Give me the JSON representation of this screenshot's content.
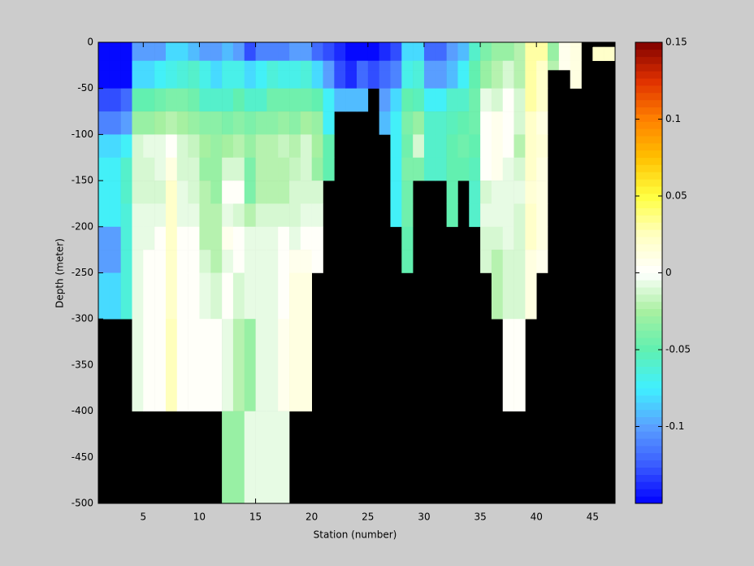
{
  "chart_data": {
    "type": "heatmap",
    "xlabel": "Station (number)",
    "ylabel": "Depth (meter)",
    "xlim": [
      1,
      47
    ],
    "ylim": [
      -500,
      0
    ],
    "xticks": [
      5,
      10,
      15,
      20,
      25,
      30,
      35,
      40,
      45
    ],
    "yticks": [
      0,
      -50,
      -100,
      -150,
      -200,
      -250,
      -300,
      -350,
      -400,
      -450,
      -500
    ],
    "x_edges": [
      1,
      2,
      3,
      4,
      5,
      6,
      7,
      8,
      9,
      10,
      11,
      12,
      13,
      14,
      15,
      16,
      17,
      18,
      19,
      20,
      21,
      22,
      23,
      24,
      25,
      26,
      27,
      28,
      29,
      30,
      31,
      32,
      33,
      34,
      35,
      36,
      37,
      38,
      39,
      40,
      41,
      42,
      43,
      44,
      45,
      46,
      47
    ],
    "y_edges": [
      0,
      -5,
      -20,
      -30,
      -50,
      -75,
      -100,
      -125,
      -150,
      -175,
      -200,
      -225,
      -250,
      -300,
      -400,
      -500
    ],
    "values": [
      [
        -0.15,
        -0.15,
        -0.15,
        -0.15,
        -0.13,
        -0.11,
        -0.08,
        -0.075,
        -0.075,
        -0.075,
        -0.1,
        -0.1,
        -0.08,
        null,
        null
      ],
      [
        -0.15,
        -0.15,
        -0.15,
        -0.15,
        -0.13,
        -0.11,
        -0.08,
        -0.075,
        -0.075,
        -0.075,
        -0.1,
        -0.1,
        -0.08,
        null,
        null
      ],
      [
        -0.15,
        -0.15,
        -0.15,
        -0.15,
        -0.12,
        -0.1,
        -0.075,
        -0.06,
        -0.06,
        -0.065,
        -0.065,
        -0.065,
        -0.065,
        null,
        null
      ],
      [
        -0.1,
        -0.1,
        -0.08,
        -0.08,
        -0.05,
        -0.03,
        -0.01,
        -0.01,
        -0.01,
        -0.005,
        -0.005,
        -0.005,
        -0.005,
        -0.005,
        null
      ],
      [
        -0.1,
        -0.1,
        -0.08,
        -0.08,
        -0.05,
        -0.03,
        -0.005,
        -0.01,
        -0.01,
        -0.005,
        -0.005,
        0,
        0,
        0,
        null
      ],
      [
        -0.1,
        -0.1,
        -0.075,
        -0.075,
        -0.045,
        -0.025,
        -0.005,
        -0.005,
        -0.01,
        -0.005,
        0,
        0,
        0,
        0,
        null
      ],
      [
        -0.08,
        -0.08,
        -0.07,
        -0.07,
        -0.04,
        -0.02,
        0,
        0.01,
        0.02,
        0.02,
        0.02,
        0.02,
        0.02,
        0.025,
        null
      ],
      [
        -0.08,
        -0.08,
        -0.065,
        -0.065,
        -0.04,
        -0.025,
        -0.01,
        -0.01,
        -0.005,
        -0.005,
        0,
        0,
        0,
        0,
        null
      ],
      [
        -0.09,
        -0.09,
        -0.06,
        -0.06,
        -0.045,
        -0.03,
        -0.015,
        -0.01,
        -0.01,
        -0.005,
        0,
        0,
        0,
        0,
        null
      ],
      [
        -0.1,
        -0.1,
        -0.07,
        -0.07,
        -0.06,
        -0.035,
        -0.025,
        -0.03,
        -0.02,
        -0.02,
        -0.02,
        -0.01,
        -0.005,
        0,
        null
      ],
      [
        -0.1,
        -0.1,
        -0.08,
        -0.08,
        -0.06,
        -0.035,
        -0.03,
        -0.03,
        -0.03,
        -0.02,
        -0.02,
        -0.02,
        -0.01,
        0,
        null
      ],
      [
        -0.09,
        -0.09,
        -0.07,
        -0.07,
        -0.06,
        -0.04,
        -0.025,
        -0.01,
        0,
        -0.005,
        0.005,
        -0.005,
        0,
        -0.005,
        -0.03
      ],
      [
        -0.1,
        -0.1,
        -0.07,
        -0.07,
        -0.05,
        -0.035,
        -0.02,
        -0.01,
        0,
        -0.01,
        0,
        0,
        -0.01,
        -0.02,
        -0.03
      ],
      [
        -0.13,
        -0.13,
        -0.08,
        -0.08,
        -0.06,
        -0.04,
        -0.03,
        -0.04,
        -0.04,
        -0.02,
        -0.005,
        -0.005,
        -0.005,
        -0.03,
        -0.005
      ],
      [
        -0.11,
        -0.11,
        -0.075,
        -0.075,
        -0.06,
        -0.035,
        -0.02,
        -0.02,
        -0.02,
        -0.01,
        -0.005,
        -0.005,
        -0.005,
        -0.005,
        -0.005
      ],
      [
        -0.11,
        -0.11,
        -0.065,
        -0.065,
        -0.045,
        -0.035,
        -0.02,
        -0.02,
        -0.02,
        -0.01,
        -0.005,
        -0.005,
        -0.005,
        -0.005,
        -0.005
      ],
      [
        -0.11,
        -0.11,
        -0.07,
        -0.07,
        -0.045,
        -0.03,
        -0.015,
        -0.02,
        -0.02,
        -0.01,
        0,
        0,
        0,
        0.005,
        -0.005
      ],
      [
        -0.1,
        -0.1,
        -0.07,
        -0.07,
        -0.045,
        -0.035,
        -0.02,
        -0.015,
        -0.01,
        -0.01,
        -0.005,
        0.005,
        0.01,
        0.01,
        null
      ],
      [
        -0.1,
        -0.1,
        -0.065,
        -0.065,
        -0.045,
        -0.025,
        -0.01,
        -0.01,
        -0.01,
        -0.005,
        0,
        0.005,
        0.01,
        0.01,
        null
      ],
      [
        -0.12,
        -0.12,
        -0.08,
        -0.08,
        -0.05,
        -0.03,
        -0.025,
        -0.03,
        -0.01,
        -0.005,
        0,
        0,
        null,
        null,
        null
      ],
      [
        -0.13,
        -0.13,
        -0.1,
        -0.1,
        -0.075,
        -0.075,
        -0.05,
        -0.05,
        null,
        null,
        null,
        null,
        null,
        null,
        null
      ],
      [
        -0.14,
        -0.14,
        -0.13,
        -0.13,
        -0.09,
        null,
        null,
        null,
        null,
        null,
        null,
        null,
        null,
        null,
        null
      ],
      [
        -0.15,
        -0.15,
        -0.14,
        -0.14,
        -0.09,
        null,
        null,
        null,
        null,
        null,
        null,
        null,
        null,
        null,
        null
      ],
      [
        -0.15,
        -0.15,
        -0.12,
        -0.12,
        -0.09,
        null,
        null,
        null,
        null,
        null,
        null,
        null,
        null,
        null,
        null
      ],
      [
        -0.15,
        -0.15,
        -0.13,
        -0.13,
        null,
        null,
        null,
        null,
        null,
        null,
        null,
        null,
        null,
        null,
        null
      ],
      [
        -0.14,
        -0.14,
        -0.12,
        -0.12,
        -0.1,
        -0.09,
        null,
        null,
        null,
        null,
        null,
        null,
        null,
        null,
        null
      ],
      [
        -0.13,
        -0.13,
        -0.11,
        -0.11,
        -0.08,
        -0.075,
        -0.075,
        -0.075,
        -0.075,
        -0.075,
        null,
        null,
        null,
        null,
        null
      ],
      [
        -0.08,
        -0.08,
        -0.07,
        -0.07,
        -0.05,
        -0.04,
        -0.045,
        -0.04,
        -0.045,
        -0.045,
        -0.05,
        -0.05,
        null,
        null,
        null
      ],
      [
        -0.08,
        -0.08,
        -0.065,
        -0.065,
        -0.055,
        -0.03,
        -0.01,
        -0.04,
        null,
        null,
        null,
        null,
        null,
        null,
        null
      ],
      [
        -0.12,
        -0.12,
        -0.1,
        -0.1,
        -0.075,
        -0.06,
        -0.06,
        -0.06,
        null,
        null,
        null,
        null,
        null,
        null,
        null
      ],
      [
        -0.12,
        -0.12,
        -0.1,
        -0.1,
        -0.075,
        -0.06,
        -0.06,
        -0.06,
        null,
        null,
        null,
        null,
        null,
        null,
        null
      ],
      [
        -0.1,
        -0.1,
        -0.09,
        -0.09,
        -0.06,
        -0.055,
        -0.05,
        -0.05,
        -0.05,
        -0.05,
        null,
        null,
        null,
        null,
        null
      ],
      [
        -0.09,
        -0.09,
        -0.075,
        -0.075,
        -0.06,
        -0.05,
        -0.045,
        -0.05,
        null,
        null,
        null,
        null,
        null,
        null,
        null
      ],
      [
        -0.06,
        -0.06,
        -0.05,
        -0.05,
        -0.045,
        -0.045,
        -0.05,
        -0.055,
        -0.06,
        -0.06,
        null,
        null,
        null,
        null,
        null
      ],
      [
        -0.04,
        -0.04,
        -0.03,
        -0.03,
        -0.005,
        0,
        0,
        0,
        -0.01,
        -0.005,
        -0.01,
        -0.01,
        null,
        null,
        null
      ],
      [
        -0.03,
        -0.03,
        -0.02,
        -0.02,
        -0.01,
        0.005,
        0.005,
        0.005,
        -0.005,
        -0.005,
        -0.01,
        -0.02,
        -0.02,
        null,
        null
      ],
      [
        -0.03,
        -0.03,
        -0.01,
        -0.01,
        0,
        0,
        0,
        -0.005,
        -0.005,
        -0.005,
        -0.005,
        -0.01,
        -0.01,
        0,
        null
      ],
      [
        -0.02,
        -0.02,
        -0.02,
        -0.02,
        -0.01,
        -0.01,
        -0.02,
        -0.01,
        -0.005,
        -0.01,
        -0.01,
        -0.01,
        -0.01,
        0,
        null
      ],
      [
        0.03,
        0.03,
        0.03,
        0.03,
        0.03,
        0.02,
        0.02,
        0.02,
        0.015,
        0.02,
        0.02,
        0.01,
        0.01,
        null,
        null
      ],
      [
        0.03,
        0.03,
        0.02,
        0.02,
        0.02,
        0.01,
        0.015,
        0.01,
        0.01,
        0.01,
        0.01,
        0.005,
        null,
        null,
        null
      ],
      [
        -0.03,
        -0.03,
        -0.02,
        null,
        null,
        null,
        null,
        null,
        null,
        null,
        null,
        null,
        null,
        null,
        null
      ],
      [
        0.005,
        0.005,
        0.005,
        null,
        null,
        null,
        null,
        null,
        null,
        null,
        null,
        null,
        null,
        null,
        null
      ],
      [
        0.01,
        0.01,
        0.01,
        0.01,
        null,
        null,
        null,
        null,
        null,
        null,
        null,
        null,
        null,
        null,
        null
      ],
      [
        null,
        null,
        null,
        null,
        null,
        null,
        null,
        null,
        null,
        null,
        null,
        null,
        null,
        null,
        null
      ],
      [
        null,
        0.02,
        null,
        null,
        null,
        null,
        null,
        null,
        null,
        null,
        null,
        null,
        null,
        null,
        null
      ],
      [
        null,
        0.02,
        null,
        null,
        null,
        null,
        null,
        null,
        null,
        null,
        null,
        null,
        null,
        null,
        null
      ]
    ],
    "clim": [
      -0.15,
      0.15
    ],
    "cticks": [
      0.15,
      0.1,
      0.05,
      0,
      -0.05,
      -0.1
    ],
    "colormap": [
      "#0000ff",
      "#3a5cff",
      "#5aa0ff",
      "#40f0ff",
      "#60f0b0",
      "#a8f0a0",
      "#ffffff",
      "#ffffc0",
      "#ffff40",
      "#ffc000",
      "#ff8000",
      "#e03000",
      "#800000"
    ],
    "colormap_levels": 64,
    "missing_color": "#000000"
  }
}
